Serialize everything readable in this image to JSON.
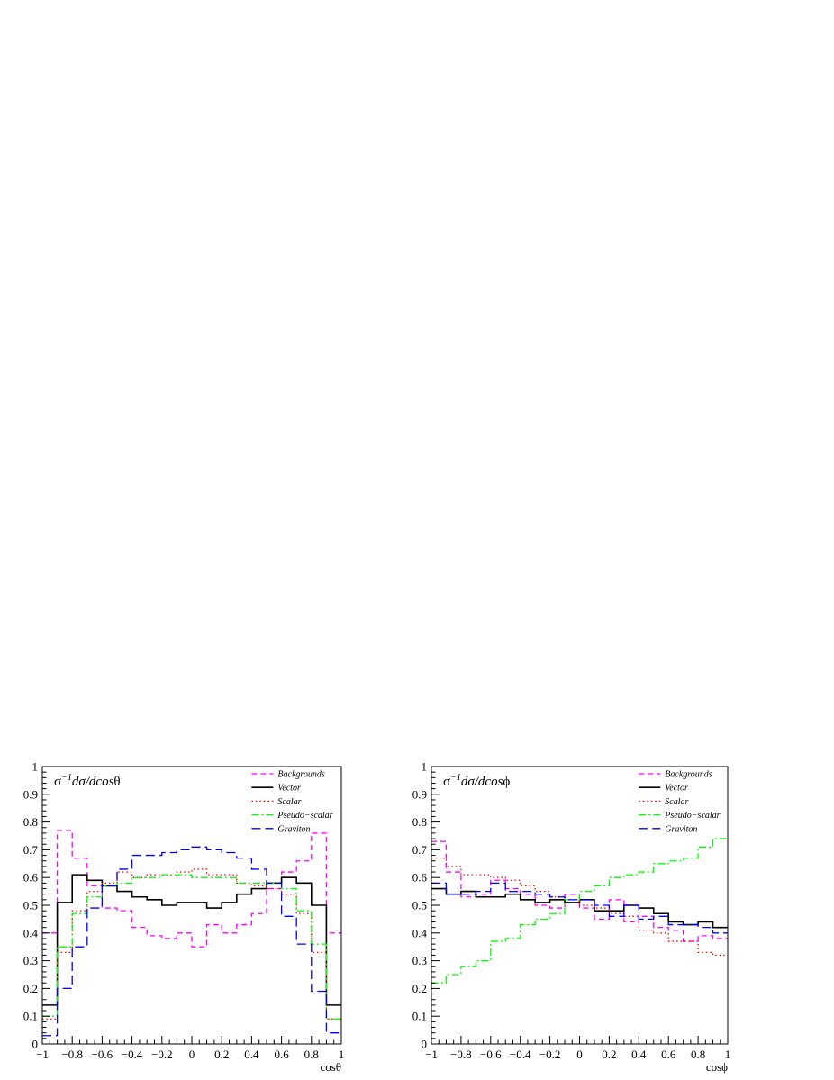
{
  "chart_data": [
    {
      "type": "histogram-step",
      "title": "σ⁻¹dσ/dcosθ",
      "title_parts": {
        "sigma": "σ",
        "sup": "−1",
        "mid": "dσ/dcos",
        "var": "θ"
      },
      "xlabel": "cosθ",
      "ylabel": "",
      "xlim": [
        -1,
        1
      ],
      "ylim": [
        0,
        1
      ],
      "bin_edges": [
        -1,
        -0.9,
        -0.8,
        -0.7,
        -0.6,
        -0.5,
        -0.4,
        -0.3,
        -0.2,
        -0.1,
        0,
        0.1,
        0.2,
        0.3,
        0.4,
        0.5,
        0.6,
        0.7,
        0.8,
        0.9,
        1
      ],
      "x_ticks": [
        "−1",
        "−0.8",
        "−0.6",
        "−0.4",
        "−0.2",
        "0",
        "0.2",
        "0.4",
        "0.6",
        "0.8",
        "1"
      ],
      "y_ticks": [
        "0",
        "0.1",
        "0.2",
        "0.3",
        "0.4",
        "0.5",
        "0.6",
        "0.7",
        "0.8",
        "0.9",
        "1"
      ],
      "grid": false,
      "legend_position": "top-right",
      "series": [
        {
          "name": "Backgrounds",
          "color": "#ff00ff",
          "dash": "dashed",
          "values": [
            0.4,
            0.77,
            0.67,
            0.57,
            0.49,
            0.48,
            0.42,
            0.39,
            0.38,
            0.4,
            0.35,
            0.43,
            0.4,
            0.43,
            0.47,
            0.56,
            0.62,
            0.66,
            0.76,
            0.4
          ]
        },
        {
          "name": "Vector",
          "color": "#000000",
          "dash": "solid",
          "values": [
            0.14,
            0.51,
            0.61,
            0.59,
            0.57,
            0.55,
            0.53,
            0.52,
            0.5,
            0.51,
            0.51,
            0.49,
            0.51,
            0.54,
            0.56,
            0.58,
            0.6,
            0.58,
            0.5,
            0.14
          ]
        },
        {
          "name": "Scalar",
          "color": "#ff0000",
          "dash": "dotted",
          "values": [
            0.09,
            0.33,
            0.48,
            0.55,
            0.58,
            0.62,
            0.6,
            0.61,
            0.61,
            0.62,
            0.63,
            0.61,
            0.61,
            0.58,
            0.57,
            0.56,
            0.54,
            0.47,
            0.33,
            0.09
          ]
        },
        {
          "name": "Pseudo−scalar",
          "color": "#00ff00",
          "dash": "dashdot",
          "values": [
            0.1,
            0.35,
            0.47,
            0.53,
            0.57,
            0.58,
            0.6,
            0.6,
            0.61,
            0.61,
            0.6,
            0.6,
            0.6,
            0.58,
            0.58,
            0.58,
            0.56,
            0.48,
            0.36,
            0.09
          ]
        },
        {
          "name": "Graviton",
          "color": "#0000ff",
          "dash": "longdash",
          "values": [
            0.03,
            0.2,
            0.35,
            0.49,
            0.57,
            0.63,
            0.68,
            0.68,
            0.69,
            0.7,
            0.71,
            0.7,
            0.69,
            0.67,
            0.63,
            0.58,
            0.46,
            0.36,
            0.19,
            0.04
          ]
        }
      ]
    },
    {
      "type": "histogram-step",
      "title": "σ⁻¹dσ/dcosϕ",
      "title_parts": {
        "sigma": "σ",
        "sup": "−1",
        "mid": "dσ/dcos",
        "var": "ϕ"
      },
      "xlabel": "cosϕ",
      "ylabel": "",
      "xlim": [
        -1,
        1
      ],
      "ylim": [
        0,
        1
      ],
      "bin_edges": [
        -1,
        -0.9,
        -0.8,
        -0.7,
        -0.6,
        -0.5,
        -0.4,
        -0.3,
        -0.2,
        -0.1,
        0,
        0.1,
        0.2,
        0.3,
        0.4,
        0.5,
        0.6,
        0.7,
        0.8,
        0.9,
        1
      ],
      "x_ticks": [
        "−1",
        "−0.8",
        "−0.6",
        "−0.4",
        "−0.2",
        "0",
        "0.2",
        "0.4",
        "0.6",
        "0.8",
        "1"
      ],
      "y_ticks": [
        "0",
        "0.1",
        "0.2",
        "0.3",
        "0.4",
        "0.5",
        "0.6",
        "0.7",
        "0.8",
        "0.9",
        "1"
      ],
      "grid": false,
      "legend_position": "top-right",
      "series": [
        {
          "name": "Backgrounds",
          "color": "#ff00ff",
          "dash": "dashed",
          "values": [
            0.73,
            0.62,
            0.53,
            0.54,
            0.59,
            0.56,
            0.54,
            0.5,
            0.49,
            0.54,
            0.49,
            0.45,
            0.52,
            0.44,
            0.46,
            0.42,
            0.41,
            0.37,
            0.39,
            0.38
          ]
        },
        {
          "name": "Vector",
          "color": "#000000",
          "dash": "solid",
          "values": [
            0.56,
            0.54,
            0.55,
            0.53,
            0.53,
            0.54,
            0.52,
            0.51,
            0.52,
            0.51,
            0.52,
            0.48,
            0.48,
            0.5,
            0.49,
            0.47,
            0.44,
            0.43,
            0.44,
            0.42
          ]
        },
        {
          "name": "Scalar",
          "color": "#ff0000",
          "dash": "dotted",
          "values": [
            0.67,
            0.64,
            0.61,
            0.61,
            0.6,
            0.59,
            0.57,
            0.55,
            0.53,
            0.52,
            0.5,
            0.49,
            0.47,
            0.46,
            0.41,
            0.4,
            0.37,
            0.37,
            0.33,
            0.32
          ]
        },
        {
          "name": "Pseudo−scalar",
          "color": "#00ff00",
          "dash": "dashdot",
          "values": [
            0.22,
            0.25,
            0.28,
            0.3,
            0.37,
            0.38,
            0.43,
            0.45,
            0.47,
            0.52,
            0.55,
            0.57,
            0.6,
            0.61,
            0.62,
            0.65,
            0.66,
            0.67,
            0.71,
            0.74
          ]
        },
        {
          "name": "Graviton",
          "color": "#0000ff",
          "dash": "longdash",
          "values": [
            0.58,
            0.54,
            0.54,
            0.55,
            0.58,
            0.55,
            0.55,
            0.54,
            0.53,
            0.52,
            0.52,
            0.5,
            0.46,
            0.5,
            0.45,
            0.46,
            0.43,
            0.43,
            0.42,
            0.4
          ]
        }
      ]
    }
  ]
}
